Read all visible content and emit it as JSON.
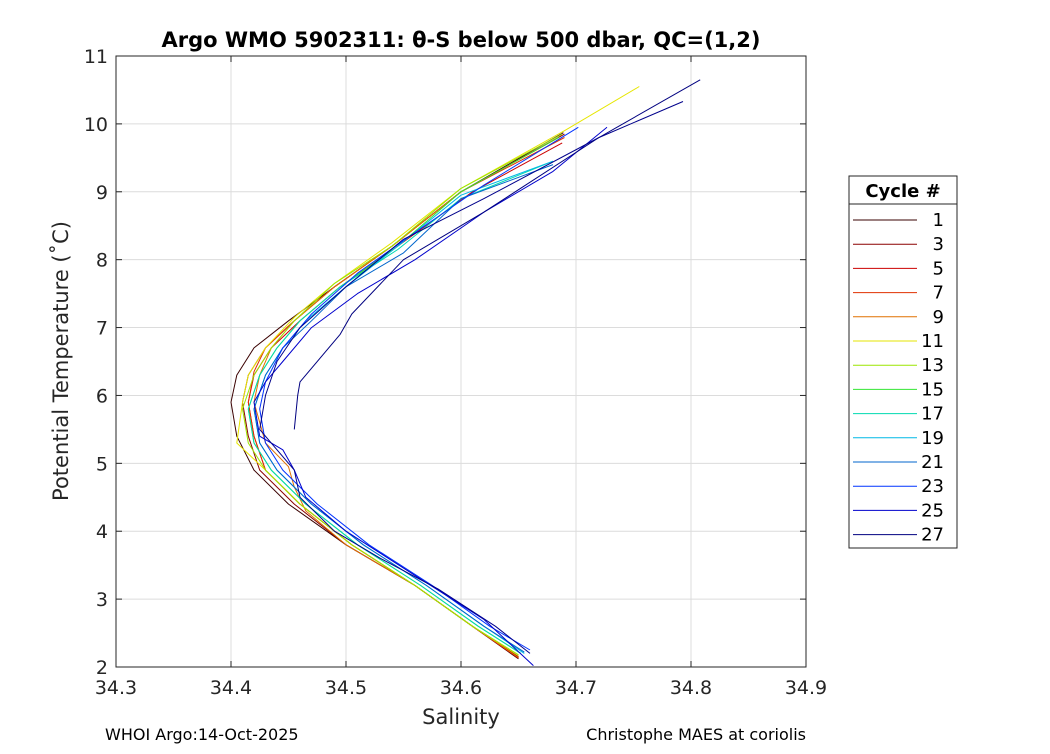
{
  "chart_data": {
    "type": "line",
    "title": "Argo WMO 5902311: θ-S below 500 dbar,  QC=(1,2)",
    "xlabel": "Salinity",
    "ylabel": "Potential Temperature (˚C)",
    "xlim": [
      34.3,
      34.9
    ],
    "ylim": [
      2,
      11
    ],
    "xticks": [
      "34.3",
      "34.4",
      "34.5",
      "34.6",
      "34.7",
      "34.8",
      "34.9"
    ],
    "yticks": [
      "2",
      "3",
      "4",
      "5",
      "6",
      "7",
      "8",
      "9",
      "10",
      "11"
    ],
    "grid": true,
    "legend": {
      "title": "Cycle #",
      "placement": "outside-right",
      "entries": [
        "1",
        "3",
        "5",
        "7",
        "9",
        "11",
        "13",
        "15",
        "17",
        "19",
        "21",
        "23",
        "25",
        "27"
      ]
    },
    "series": [
      {
        "name": "1",
        "color": "#3a0000",
        "points": [
          [
            34.689,
            9.87
          ],
          [
            34.6,
            9.0
          ],
          [
            34.54,
            8.2
          ],
          [
            34.49,
            7.6
          ],
          [
            34.45,
            7.1
          ],
          [
            34.42,
            6.7
          ],
          [
            34.405,
            6.3
          ],
          [
            34.4,
            5.9
          ],
          [
            34.405,
            5.4
          ],
          [
            34.42,
            4.9
          ],
          [
            34.45,
            4.4
          ],
          [
            34.5,
            3.8
          ],
          [
            34.56,
            3.2
          ],
          [
            34.61,
            2.6
          ],
          [
            34.65,
            2.12
          ]
        ]
      },
      {
        "name": "3",
        "color": "#8b0000",
        "points": [
          [
            34.69,
            9.85
          ],
          [
            34.6,
            9.0
          ],
          [
            34.54,
            8.2
          ],
          [
            34.49,
            7.6
          ],
          [
            34.455,
            7.1
          ],
          [
            34.43,
            6.7
          ],
          [
            34.415,
            6.3
          ],
          [
            34.41,
            5.9
          ],
          [
            34.415,
            5.4
          ],
          [
            34.425,
            4.9
          ],
          [
            34.455,
            4.4
          ],
          [
            34.5,
            3.8
          ],
          [
            34.56,
            3.2
          ],
          [
            34.61,
            2.6
          ],
          [
            34.65,
            2.15
          ]
        ]
      },
      {
        "name": "5",
        "color": "#cc0000",
        "points": [
          [
            34.688,
            9.72
          ],
          [
            34.61,
            9.0
          ],
          [
            34.545,
            8.2
          ],
          [
            34.495,
            7.6
          ],
          [
            34.46,
            7.1
          ],
          [
            34.435,
            6.7
          ],
          [
            34.42,
            6.3
          ],
          [
            34.415,
            5.9
          ],
          [
            34.42,
            5.4
          ],
          [
            34.43,
            4.9
          ],
          [
            34.46,
            4.4
          ],
          [
            34.505,
            3.8
          ],
          [
            34.56,
            3.2
          ],
          [
            34.61,
            2.6
          ],
          [
            34.65,
            2.13
          ]
        ]
      },
      {
        "name": "7",
        "color": "#e03000",
        "points": [
          [
            34.69,
            9.8
          ],
          [
            34.6,
            9.0
          ],
          [
            34.54,
            8.2
          ],
          [
            34.49,
            7.6
          ],
          [
            34.455,
            7.1
          ],
          [
            34.43,
            6.7
          ],
          [
            34.42,
            6.35
          ],
          [
            34.415,
            5.9
          ],
          [
            34.42,
            5.4
          ],
          [
            34.43,
            4.9
          ],
          [
            34.46,
            4.4
          ],
          [
            34.505,
            3.8
          ],
          [
            34.56,
            3.2
          ],
          [
            34.61,
            2.6
          ],
          [
            34.65,
            2.14
          ]
        ]
      },
      {
        "name": "9",
        "color": "#e07000",
        "points": [
          [
            34.685,
            9.8
          ],
          [
            34.6,
            9.0
          ],
          [
            34.54,
            8.2
          ],
          [
            34.49,
            7.6
          ],
          [
            34.455,
            7.1
          ],
          [
            34.435,
            6.7
          ],
          [
            34.425,
            6.3
          ],
          [
            34.42,
            5.9
          ],
          [
            34.43,
            5.3
          ],
          [
            34.45,
            4.95
          ],
          [
            34.455,
            4.65
          ],
          [
            34.465,
            4.3
          ],
          [
            34.5,
            3.8
          ],
          [
            34.56,
            3.2
          ],
          [
            34.61,
            2.6
          ],
          [
            34.65,
            2.14
          ]
        ]
      },
      {
        "name": "11",
        "color": "#e6e600",
        "points": [
          [
            34.755,
            10.55
          ],
          [
            34.69,
            9.9
          ],
          [
            34.6,
            9.05
          ],
          [
            34.54,
            8.25
          ],
          [
            34.49,
            7.65
          ],
          [
            34.455,
            7.15
          ],
          [
            34.43,
            6.7
          ],
          [
            34.415,
            6.3
          ],
          [
            34.41,
            5.9
          ],
          [
            34.405,
            5.3
          ],
          [
            34.43,
            4.9
          ],
          [
            34.46,
            4.4
          ],
          [
            34.505,
            3.8
          ],
          [
            34.56,
            3.2
          ],
          [
            34.61,
            2.6
          ],
          [
            34.65,
            2.17
          ]
        ]
      },
      {
        "name": "13",
        "color": "#9be600",
        "points": [
          [
            34.688,
            9.85
          ],
          [
            34.6,
            9.05
          ],
          [
            34.54,
            8.2
          ],
          [
            34.49,
            7.65
          ],
          [
            34.455,
            7.1
          ],
          [
            34.435,
            6.7
          ],
          [
            34.42,
            6.3
          ],
          [
            34.41,
            5.8
          ],
          [
            34.415,
            5.3
          ],
          [
            34.43,
            4.9
          ],
          [
            34.46,
            4.4
          ],
          [
            34.505,
            3.8
          ],
          [
            34.56,
            3.2
          ],
          [
            34.61,
            2.6
          ],
          [
            34.65,
            2.18
          ]
        ]
      },
      {
        "name": "15",
        "color": "#33e633",
        "points": [
          [
            34.685,
            9.8
          ],
          [
            34.6,
            9.0
          ],
          [
            34.545,
            8.2
          ],
          [
            34.495,
            7.6
          ],
          [
            34.46,
            7.1
          ],
          [
            34.44,
            6.7
          ],
          [
            34.425,
            6.3
          ],
          [
            34.415,
            5.8
          ],
          [
            34.42,
            5.3
          ],
          [
            34.435,
            4.9
          ],
          [
            34.465,
            4.4
          ],
          [
            34.51,
            3.8
          ],
          [
            34.565,
            3.2
          ],
          [
            34.615,
            2.6
          ],
          [
            34.652,
            2.2
          ]
        ]
      },
      {
        "name": "17",
        "color": "#00d9b0",
        "points": [
          [
            34.68,
            9.45
          ],
          [
            34.6,
            8.9
          ],
          [
            34.545,
            8.15
          ],
          [
            34.495,
            7.6
          ],
          [
            34.46,
            7.1
          ],
          [
            34.44,
            6.7
          ],
          [
            34.425,
            6.3
          ],
          [
            34.415,
            5.8
          ],
          [
            34.42,
            5.3
          ],
          [
            34.435,
            4.9
          ],
          [
            34.465,
            4.4
          ],
          [
            34.51,
            3.8
          ],
          [
            34.565,
            3.2
          ],
          [
            34.615,
            2.6
          ],
          [
            34.652,
            2.2
          ]
        ]
      },
      {
        "name": "19",
        "color": "#00b8e6",
        "points": [
          [
            34.68,
            9.45
          ],
          [
            34.6,
            8.95
          ],
          [
            34.545,
            8.2
          ],
          [
            34.5,
            7.6
          ],
          [
            34.465,
            7.1
          ],
          [
            34.445,
            6.7
          ],
          [
            34.43,
            6.3
          ],
          [
            34.42,
            5.8
          ],
          [
            34.425,
            5.3
          ],
          [
            34.44,
            4.9
          ],
          [
            34.47,
            4.4
          ],
          [
            34.515,
            3.8
          ],
          [
            34.57,
            3.2
          ],
          [
            34.62,
            2.6
          ],
          [
            34.655,
            2.2
          ]
        ]
      },
      {
        "name": "21",
        "color": "#0066cc",
        "points": [
          [
            34.68,
            9.4
          ],
          [
            34.6,
            8.9
          ],
          [
            34.55,
            8.1
          ],
          [
            34.5,
            7.6
          ],
          [
            34.47,
            7.1
          ],
          [
            34.445,
            6.7
          ],
          [
            34.43,
            6.3
          ],
          [
            34.42,
            5.8
          ],
          [
            34.425,
            5.3
          ],
          [
            34.44,
            4.9
          ],
          [
            34.47,
            4.4
          ],
          [
            34.515,
            3.8
          ],
          [
            34.57,
            3.2
          ],
          [
            34.62,
            2.6
          ],
          [
            34.655,
            2.22
          ]
        ]
      },
      {
        "name": "23",
        "color": "#0033ff",
        "points": [
          [
            34.702,
            9.95
          ],
          [
            34.62,
            9.1
          ],
          [
            34.56,
            8.4
          ],
          [
            34.51,
            7.8
          ],
          [
            34.47,
            7.2
          ],
          [
            34.445,
            6.7
          ],
          [
            34.43,
            6.2
          ],
          [
            34.425,
            5.8
          ],
          [
            34.43,
            5.3
          ],
          [
            34.445,
            4.9
          ],
          [
            34.475,
            4.4
          ],
          [
            34.52,
            3.8
          ],
          [
            34.575,
            3.2
          ],
          [
            34.625,
            2.6
          ],
          [
            34.66,
            2.25
          ]
        ]
      },
      {
        "name": "25",
        "color": "#0000cc",
        "points": [
          [
            34.727,
            9.95
          ],
          [
            34.68,
            9.3
          ],
          [
            34.62,
            8.7
          ],
          [
            34.56,
            8.0
          ],
          [
            34.51,
            7.5
          ],
          [
            34.47,
            7.0
          ],
          [
            34.445,
            6.5
          ],
          [
            34.43,
            6.2
          ],
          [
            34.42,
            5.9
          ],
          [
            34.425,
            5.4
          ],
          [
            34.445,
            5.2
          ],
          [
            34.455,
            4.9
          ],
          [
            34.465,
            4.5
          ],
          [
            34.5,
            4.0
          ],
          [
            34.56,
            3.35
          ],
          [
            34.62,
            2.7
          ],
          [
            34.663,
            2.02
          ]
        ]
      },
      {
        "name": "27",
        "color": "#000080",
        "points": [
          [
            34.808,
            10.65
          ],
          [
            34.72,
            9.8
          ],
          [
            34.62,
            8.7
          ],
          [
            34.55,
            8.0
          ],
          [
            34.505,
            7.2
          ],
          [
            34.495,
            6.9
          ],
          [
            34.47,
            6.4
          ],
          [
            34.46,
            6.2
          ],
          [
            34.458,
            6.0
          ],
          [
            34.455,
            5.5
          ]
        ]
      },
      {
        "name": "",
        "color": "#00008b",
        "points": [
          [
            34.793,
            10.33
          ],
          [
            34.72,
            9.8
          ],
          [
            34.62,
            8.9
          ],
          [
            34.55,
            8.3
          ],
          [
            34.5,
            7.6
          ],
          [
            34.46,
            7.0
          ],
          [
            34.44,
            6.5
          ],
          [
            34.43,
            6.0
          ],
          [
            34.425,
            5.5
          ],
          [
            34.44,
            5.2
          ],
          [
            34.455,
            4.9
          ],
          [
            34.46,
            4.5
          ],
          [
            34.49,
            4.0
          ],
          [
            34.53,
            3.6
          ],
          [
            34.58,
            3.15
          ],
          [
            34.63,
            2.6
          ],
          [
            34.66,
            2.2
          ]
        ]
      }
    ]
  },
  "footer": {
    "left": "WHOI Argo:14-Oct-2025",
    "right": "Christophe MAES at coriolis"
  }
}
